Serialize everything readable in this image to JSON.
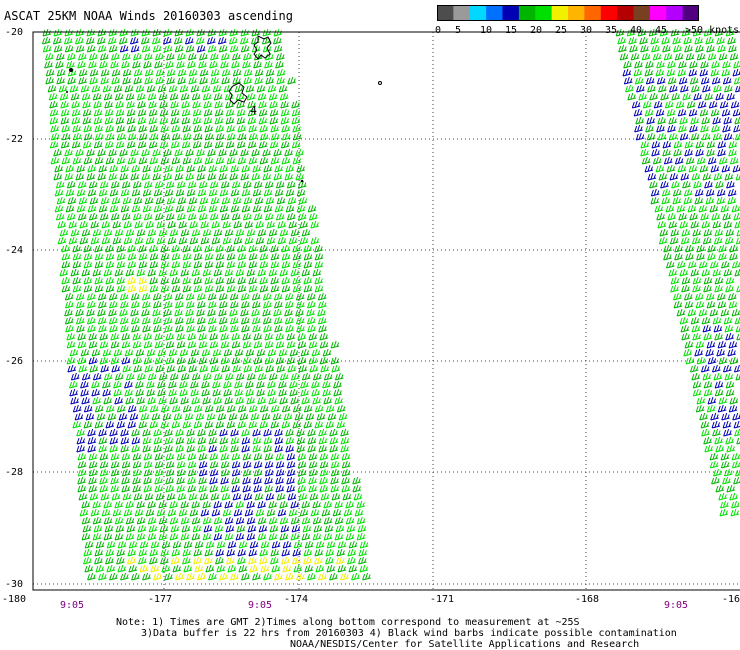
{
  "title": "ASCAT 25KM NOAA Winds 20160303 ascending",
  "colorbar": {
    "ticks": [
      "0",
      "5",
      "10",
      "15",
      "20",
      "25",
      "30",
      "35",
      "40",
      "45",
      ">50 knots"
    ],
    "colors": [
      "#4d4d4d",
      "#9a9a9a",
      "#00d8ff",
      "#0070ff",
      "#0000b4",
      "#00b400",
      "#00e000",
      "#f0f000",
      "#ffb400",
      "#ff6600",
      "#ff0000",
      "#b40000",
      "#784020",
      "#ff00ff",
      "#b400ff",
      "#500080"
    ]
  },
  "map": {
    "lat_labels": [
      "-20",
      "-22",
      "-24",
      "-26",
      "-28",
      "-30"
    ],
    "lon_labels": [
      "-180",
      "-177",
      "-174",
      "-171",
      "-168",
      "-16"
    ],
    "time_labels": [
      "9:05",
      "9:05",
      "9:05"
    ],
    "swaths": [
      {
        "region": "left",
        "dominant_colors": [
          "#00b400",
          "#00e000",
          "#0000b4"
        ],
        "speed_range_knots": "15-25"
      },
      {
        "region": "right",
        "dominant_colors": [
          "#00b400",
          "#00e000",
          "#0000b4"
        ],
        "speed_range_knots": "15-20"
      }
    ]
  },
  "notes": {
    "line1": "Note: 1) Times are GMT 2)Times along bottom correspond to measurement at ~25S",
    "line2": "3)Data buffer is 22 hrs from 20160303 4) Black wind barbs indicate possible contamination",
    "line3": "NOAA/NESDIS/Center for Satellite Applications and Research"
  }
}
